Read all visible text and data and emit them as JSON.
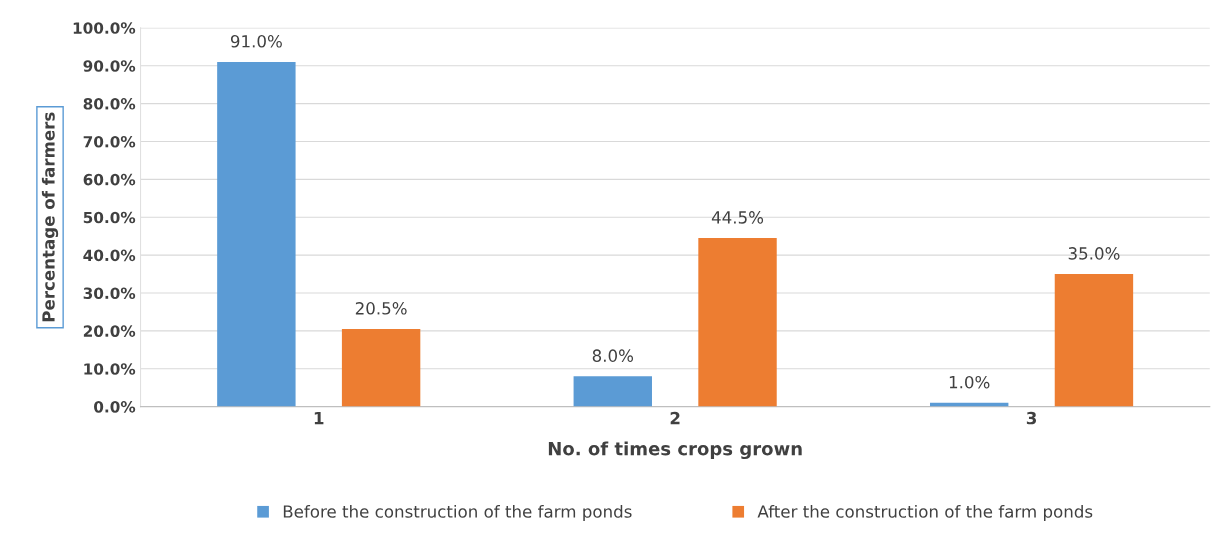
{
  "chart_data": {
    "type": "bar",
    "xlabel": "No. of times crops grown",
    "ylabel": "Percentage of farmers",
    "categories": [
      "1",
      "2",
      "3"
    ],
    "series": [
      {
        "name": "Before the construction of the farm ponds",
        "color": "#5b9bd5",
        "values": [
          91.0,
          8.0,
          1.0
        ],
        "value_labels": [
          "91.0%",
          "8.0%",
          "1.0%"
        ]
      },
      {
        "name": "After the construction of the farm ponds",
        "color": "#ed7d31",
        "values": [
          20.5,
          44.5,
          35.0
        ],
        "value_labels": [
          "20.5%",
          "44.5%",
          "35.0%"
        ]
      }
    ],
    "ylim": [
      0,
      100
    ],
    "yticks": [
      {
        "value": 0,
        "label": "0.0%"
      },
      {
        "value": 10,
        "label": "10.0%"
      },
      {
        "value": 20,
        "label": "20.0%"
      },
      {
        "value": 30,
        "label": "30.0%"
      },
      {
        "value": 40,
        "label": "40.0%"
      },
      {
        "value": 50,
        "label": "50.0%"
      },
      {
        "value": 60,
        "label": "60.0%"
      },
      {
        "value": 70,
        "label": "70.0%"
      },
      {
        "value": 80,
        "label": "80.0%"
      },
      {
        "value": 90,
        "label": "90.0%"
      },
      {
        "value": 100,
        "label": "100.0%"
      }
    ],
    "grid": "y",
    "legend": "bottom"
  }
}
